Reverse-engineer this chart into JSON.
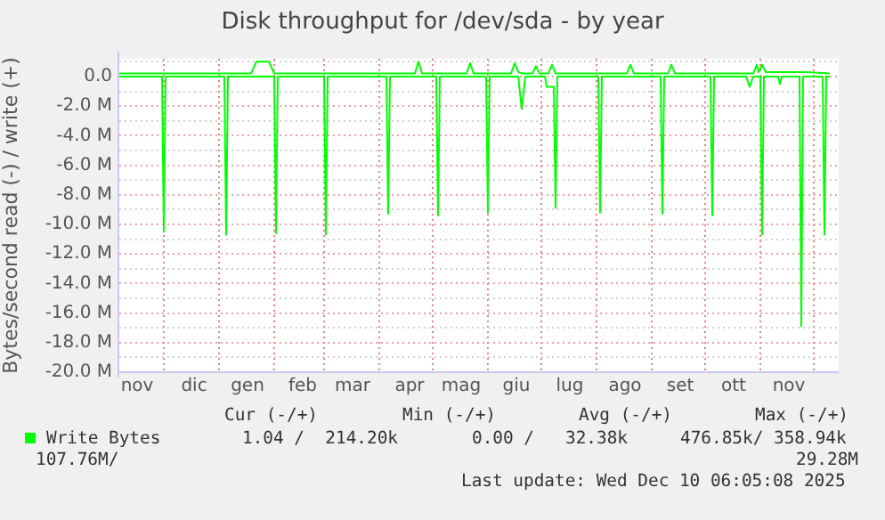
{
  "chart_data": {
    "type": "line",
    "title": "Disk throughput for /dev/sda - by year",
    "ylabel": "Bytes/second read (-) / write (+)",
    "xlim": [
      "2024-11-06",
      "2025-12-15"
    ],
    "xticks": [
      {
        "value": "2024-11-16",
        "label": "nov"
      },
      {
        "value": "2024-12-01",
        "label": null
      },
      {
        "value": "2024-12-18",
        "label": "dic"
      },
      {
        "value": "2025-01-01",
        "label": null
      },
      {
        "value": "2025-01-17",
        "label": "gen"
      },
      {
        "value": "2025-02-01",
        "label": null
      },
      {
        "value": "2025-02-17",
        "label": "feb"
      },
      {
        "value": "2025-03-01",
        "label": null
      },
      {
        "value": "2025-03-17",
        "label": "mar"
      },
      {
        "value": "2025-04-01",
        "label": null
      },
      {
        "value": "2025-04-18",
        "label": "apr"
      },
      {
        "value": "2025-05-01",
        "label": null
      },
      {
        "value": "2025-05-17",
        "label": "mag"
      },
      {
        "value": "2025-06-01",
        "label": null
      },
      {
        "value": "2025-06-17",
        "label": "giu"
      },
      {
        "value": "2025-07-01",
        "label": null
      },
      {
        "value": "2025-07-17",
        "label": "lug"
      },
      {
        "value": "2025-08-01",
        "label": null
      },
      {
        "value": "2025-08-17",
        "label": "ago"
      },
      {
        "value": "2025-09-01",
        "label": null
      },
      {
        "value": "2025-09-17",
        "label": "set"
      },
      {
        "value": "2025-10-01",
        "label": null
      },
      {
        "value": "2025-10-17",
        "label": "ott"
      },
      {
        "value": "2025-11-01",
        "label": null
      },
      {
        "value": "2025-11-17",
        "label": "nov"
      },
      {
        "value": "2025-12-01",
        "label": null
      }
    ],
    "ylim": [
      -20000000,
      1200000
    ],
    "yticks": [
      {
        "value": -20000000,
        "label": "-20.0 M"
      },
      {
        "value": -19000000,
        "label": null
      },
      {
        "value": -18000000,
        "label": "-18.0 M"
      },
      {
        "value": -17000000,
        "label": null
      },
      {
        "value": -16000000,
        "label": "-16.0 M"
      },
      {
        "value": -15000000,
        "label": null
      },
      {
        "value": -14000000,
        "label": "-14.0 M"
      },
      {
        "value": -13000000,
        "label": null
      },
      {
        "value": -12000000,
        "label": "-12.0 M"
      },
      {
        "value": -11000000,
        "label": null
      },
      {
        "value": -10000000,
        "label": "-10.0 M"
      },
      {
        "value": -9000000,
        "label": null
      },
      {
        "value": -8000000,
        "label": "-8.0 M"
      },
      {
        "value": -7000000,
        "label": null
      },
      {
        "value": -6000000,
        "label": "-6.0 M"
      },
      {
        "value": -5000000,
        "label": null
      },
      {
        "value": -4000000,
        "label": "-4.0 M"
      },
      {
        "value": -3000000,
        "label": null
      },
      {
        "value": -2000000,
        "label": "-2.0 M"
      },
      {
        "value": -1000000,
        "label": null
      },
      {
        "value": 0,
        "label": "0.0"
      },
      {
        "value": 1000000,
        "label": null
      }
    ],
    "grid": true,
    "legend": "bottom",
    "marker": "none",
    "line_style": "solid",
    "series": [
      {
        "name": "Write Bytes",
        "color": "#00ff00",
        "x": [
          "2024-11-06",
          "2025-01-19",
          "2025-01-22",
          "2025-01-29",
          "2025-02-01",
          "2025-04-21",
          "2025-04-23",
          "2025-04-25",
          "2025-05-20",
          "2025-05-22",
          "2025-05-24",
          "2025-06-14",
          "2025-06-16",
          "2025-06-18",
          "2025-06-20",
          "2025-06-26",
          "2025-06-28",
          "2025-06-30",
          "2025-07-05",
          "2025-07-07",
          "2025-07-09",
          "2025-08-18",
          "2025-08-20",
          "2025-08-22",
          "2025-09-10",
          "2025-09-12",
          "2025-09-14",
          "2025-10-28",
          "2025-10-30",
          "2025-10-31",
          "2025-11-02",
          "2025-11-04",
          "2025-11-25",
          "2025-11-27",
          "2025-12-10"
        ],
        "values": [
          200000,
          200000,
          1000000,
          1000000,
          200000,
          200000,
          1000000,
          200000,
          200000,
          900000,
          200000,
          200000,
          900000,
          300000,
          200000,
          200000,
          700000,
          200000,
          200000,
          800000,
          200000,
          200000,
          800000,
          200000,
          200000,
          800000,
          200000,
          200000,
          800000,
          300000,
          800000,
          300000,
          300000,
          300000,
          200000
        ]
      },
      {
        "color": "#00ff00",
        "x": [
          "2024-11-06",
          "2024-11-30",
          "2024-12-01",
          "2024-12-02",
          "2025-01-04",
          "2025-01-05",
          "2025-01-06",
          "2025-02-01",
          "2025-02-02",
          "2025-02-03",
          "2025-03-01",
          "2025-03-02",
          "2025-03-03",
          "2025-04-05",
          "2025-04-06",
          "2025-04-07",
          "2025-05-03",
          "2025-05-04",
          "2025-05-05",
          "2025-05-31",
          "2025-06-01",
          "2025-06-02",
          "2025-06-18",
          "2025-06-20",
          "2025-06-22",
          "2025-07-03",
          "2025-07-04",
          "2025-07-08",
          "2025-07-09",
          "2025-07-10",
          "2025-08-02",
          "2025-08-03",
          "2025-08-04",
          "2025-09-06",
          "2025-09-07",
          "2025-09-08",
          "2025-10-04",
          "2025-10-05",
          "2025-10-06",
          "2025-10-24",
          "2025-10-26",
          "2025-10-28",
          "2025-11-01",
          "2025-11-02",
          "2025-11-03",
          "2025-11-11",
          "2025-11-12",
          "2025-11-13",
          "2025-11-23",
          "2025-11-24",
          "2025-11-25",
          "2025-12-06",
          "2025-12-07",
          "2025-12-08",
          "2025-12-10"
        ],
        "values": [
          0,
          0,
          -10500000,
          0,
          0,
          -10700000,
          0,
          0,
          -10600000,
          0,
          0,
          -10700000,
          0,
          0,
          -9300000,
          0,
          0,
          -9400000,
          0,
          0,
          -9200000,
          0,
          0,
          -2200000,
          0,
          0,
          -700000,
          -700000,
          -8900000,
          0,
          0,
          -9200000,
          0,
          0,
          -9300000,
          0,
          0,
          -9400000,
          0,
          0,
          -700000,
          0,
          0,
          -10700000,
          0,
          0,
          -500000,
          0,
          0,
          -16900000,
          0,
          0,
          -10700000,
          0,
          0
        ]
      }
    ],
    "annotations": [
      "Cur (-/+)",
      "Min (-/+)",
      "Avg (-/+)",
      "Max (-/+)",
      "1.04 /  214.20k",
      "0.00 /   32.38k",
      "476.85k/ 358.94k",
      "107.76M/",
      "29.28M",
      "Last update: Wed Dec 10 06:05:08 2025"
    ]
  }
}
